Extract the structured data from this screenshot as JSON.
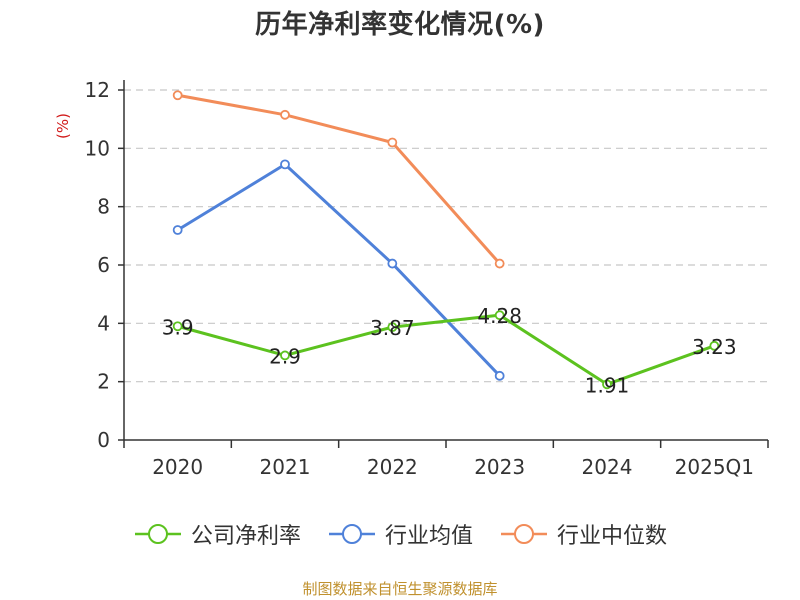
{
  "chart_data": {
    "type": "line",
    "title": "历年净利率变化情况(%)",
    "ylabel": "(%)",
    "categories": [
      "2020",
      "2021",
      "2022",
      "2023",
      "2024",
      "2025Q1"
    ],
    "ylim": [
      0,
      12
    ],
    "yticks": [
      0,
      2,
      4,
      6,
      8,
      10,
      12
    ],
    "grid": true,
    "legend_position": "bottom",
    "series": [
      {
        "name": "公司净利率",
        "color": "#5cc21f",
        "values": [
          3.9,
          2.9,
          3.87,
          4.28,
          1.91,
          3.23
        ],
        "labels": [
          "3.9",
          "2.9",
          "3.87",
          "4.28",
          "1.91",
          "3.23"
        ]
      },
      {
        "name": "行业均值",
        "color": "#4f81d9",
        "values": [
          7.2,
          9.45,
          6.05,
          2.2,
          null,
          null
        ]
      },
      {
        "name": "行业中位数",
        "color": "#f28c59",
        "values": [
          11.82,
          11.15,
          10.2,
          6.05,
          null,
          null
        ]
      }
    ]
  },
  "source_note": "制图数据来自恒生聚源数据库"
}
